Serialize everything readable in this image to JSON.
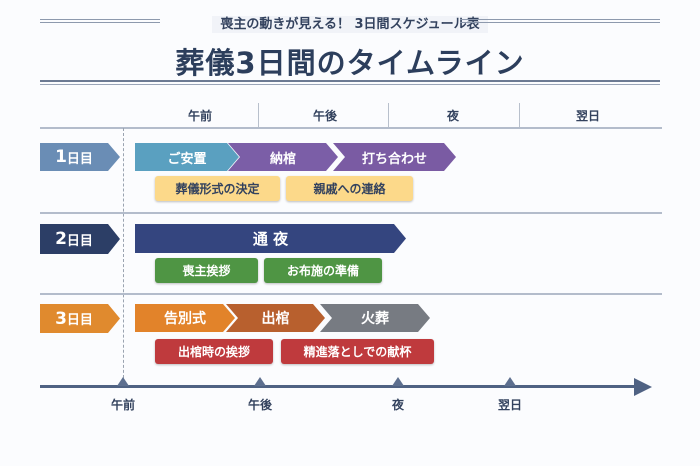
{
  "header": {
    "subtitle": "喪主の動きが見える！ 3日間スケジュール表",
    "title": "葬儀3日間のタイムライン"
  },
  "columns": [
    "午前",
    "午後",
    "夜",
    "翌日"
  ],
  "days": [
    {
      "num": "1",
      "suffix": "日目",
      "color": "#6a8db5",
      "phases": [
        {
          "label": "ご安置",
          "color": "#5aa0c0"
        },
        {
          "label": "納棺",
          "color": "#7b5ea7"
        },
        {
          "label": "打ち合わせ",
          "color": "#7a5ba3"
        }
      ],
      "tasks": [
        "葬儀形式の決定",
        "親戚への連絡"
      ]
    },
    {
      "num": "2",
      "suffix": "日目",
      "color": "#2c3e66",
      "phases": [
        {
          "label": "通 夜",
          "color": "#34457f"
        }
      ],
      "tasks": [
        "喪主挨拶",
        "お布施の準備"
      ]
    },
    {
      "num": "3",
      "suffix": "日目",
      "color": "#e08a2e",
      "phases": [
        {
          "label": "告別式",
          "color": "#e2832a"
        },
        {
          "label": "出棺",
          "color": "#b8602e"
        },
        {
          "label": "火葬",
          "color": "#777b82"
        }
      ],
      "tasks": [
        "出棺時の挨拶",
        "精進落としでの献杯"
      ]
    }
  ],
  "axis": {
    "ticks": [
      "午前",
      "午後",
      "夜",
      "翌日"
    ]
  }
}
